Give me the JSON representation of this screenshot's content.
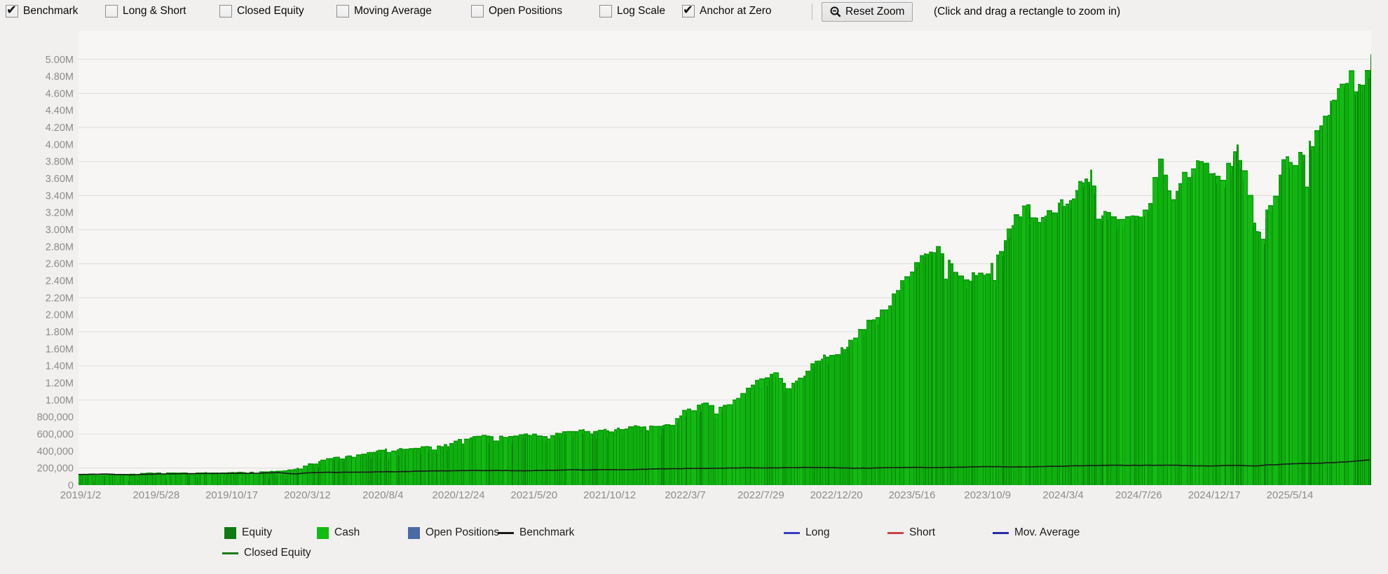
{
  "toolbar": {
    "checkboxes": [
      {
        "label": "Benchmark",
        "checked": true
      },
      {
        "label": "Long & Short",
        "checked": false
      },
      {
        "label": "Closed Equity",
        "checked": false
      },
      {
        "label": "Moving Average",
        "checked": false
      },
      {
        "label": "Open Positions",
        "checked": false
      },
      {
        "label": "Log Scale",
        "checked": false
      },
      {
        "label": "Anchor at Zero",
        "checked": true
      }
    ],
    "reset_zoom_label": "Reset Zoom",
    "hint": "(Click and drag a rectangle to zoom in)"
  },
  "chart_data": {
    "type": "area",
    "title": "",
    "xlabel": "",
    "ylabel": "",
    "ylim": [
      0,
      5200000
    ],
    "grid": "horizontal gridlines every 400,000 starting at 200,000",
    "legend_position": "bottom",
    "x_tick_labels": [
      "2019/1/2",
      "2019/5/28",
      "2019/10/17",
      "2020/3/12",
      "2020/8/4",
      "2020/12/24",
      "2021/5/20",
      "2021/10/12",
      "2022/3/7",
      "2022/7/29",
      "2022/12/20",
      "2023/5/16",
      "2023/10/9",
      "2024/3/4",
      "2024/7/26",
      "2024/12/17",
      "2025/5/14"
    ],
    "y_tick_labels": [
      "0",
      "200,000",
      "400,000",
      "600,000",
      "800,000",
      "1.00M",
      "1.20M",
      "1.40M",
      "1.60M",
      "1.80M",
      "2.00M",
      "2.20M",
      "2.40M",
      "2.60M",
      "2.80M",
      "3.00M",
      "3.20M",
      "3.40M",
      "3.60M",
      "3.80M",
      "4.00M",
      "4.20M",
      "4.40M",
      "4.60M",
      "4.80M",
      "5.00M"
    ],
    "y_tick_step": 200000,
    "series": [
      {
        "name": "Equity / Cash",
        "type": "area-bars",
        "color": "#12b412",
        "keypoints": [
          [
            0.0,
            128000
          ],
          [
            0.01,
            132000
          ],
          [
            0.02,
            136000
          ],
          [
            0.035,
            130000
          ],
          [
            0.05,
            142000
          ],
          [
            0.065,
            148000
          ],
          [
            0.08,
            146000
          ],
          [
            0.095,
            150000
          ],
          [
            0.11,
            148000
          ],
          [
            0.119,
            152000
          ],
          [
            0.13,
            155000
          ],
          [
            0.14,
            158000
          ],
          [
            0.15,
            165000
          ],
          [
            0.16,
            172000
          ],
          [
            0.17,
            200000
          ],
          [
            0.177,
            235000
          ],
          [
            0.185,
            290000
          ],
          [
            0.195,
            320000
          ],
          [
            0.205,
            335000
          ],
          [
            0.215,
            355000
          ],
          [
            0.225,
            385000
          ],
          [
            0.236,
            420000
          ],
          [
            0.248,
            430000
          ],
          [
            0.26,
            440000
          ],
          [
            0.272,
            455000
          ],
          [
            0.283,
            465000
          ],
          [
            0.294,
            540000
          ],
          [
            0.305,
            565000
          ],
          [
            0.315,
            585000
          ],
          [
            0.325,
            570000
          ],
          [
            0.335,
            580000
          ],
          [
            0.345,
            595000
          ],
          [
            0.353,
            600000
          ],
          [
            0.362,
            570000
          ],
          [
            0.372,
            615000
          ],
          [
            0.382,
            635000
          ],
          [
            0.392,
            645000
          ],
          [
            0.4,
            640000
          ],
          [
            0.411,
            655000
          ],
          [
            0.42,
            670000
          ],
          [
            0.43,
            690000
          ],
          [
            0.44,
            705000
          ],
          [
            0.45,
            690000
          ],
          [
            0.458,
            730000
          ],
          [
            0.465,
            820000
          ],
          [
            0.47,
            890000
          ],
          [
            0.478,
            940000
          ],
          [
            0.486,
            975000
          ],
          [
            0.493,
            880000
          ],
          [
            0.5,
            930000
          ],
          [
            0.508,
            1000000
          ],
          [
            0.515,
            1090000
          ],
          [
            0.521,
            1180000
          ],
          [
            0.528,
            1250000
          ],
          [
            0.535,
            1290000
          ],
          [
            0.542,
            1310000
          ],
          [
            0.549,
            1140000
          ],
          [
            0.556,
            1250000
          ],
          [
            0.563,
            1320000
          ],
          [
            0.57,
            1450000
          ],
          [
            0.578,
            1510000
          ],
          [
            0.586,
            1550000
          ],
          [
            0.594,
            1630000
          ],
          [
            0.602,
            1760000
          ],
          [
            0.61,
            1900000
          ],
          [
            0.618,
            2000000
          ],
          [
            0.626,
            2100000
          ],
          [
            0.635,
            2320000
          ],
          [
            0.645,
            2550000
          ],
          [
            0.652,
            2650000
          ],
          [
            0.66,
            2730000
          ],
          [
            0.668,
            2780000
          ],
          [
            0.674,
            2600000
          ],
          [
            0.681,
            2480000
          ],
          [
            0.688,
            2420000
          ],
          [
            0.695,
            2480000
          ],
          [
            0.703,
            2500000
          ],
          [
            0.71,
            2650000
          ],
          [
            0.717,
            2880000
          ],
          [
            0.724,
            3120000
          ],
          [
            0.731,
            3260000
          ],
          [
            0.738,
            3280000
          ],
          [
            0.744,
            3100000
          ],
          [
            0.75,
            3180000
          ],
          [
            0.757,
            3280000
          ],
          [
            0.764,
            3300000
          ],
          [
            0.77,
            3420000
          ],
          [
            0.777,
            3550000
          ],
          [
            0.784,
            3660000
          ],
          [
            0.79,
            3100000
          ],
          [
            0.797,
            3220000
          ],
          [
            0.804,
            3180000
          ],
          [
            0.812,
            3100000
          ],
          [
            0.82,
            3180000
          ],
          [
            0.826,
            3260000
          ],
          [
            0.83,
            3320000
          ],
          [
            0.836,
            3900000
          ],
          [
            0.841,
            3700000
          ],
          [
            0.846,
            3380000
          ],
          [
            0.852,
            3550000
          ],
          [
            0.86,
            3700000
          ],
          [
            0.866,
            3800000
          ],
          [
            0.872,
            3820000
          ],
          [
            0.877,
            3620000
          ],
          [
            0.883,
            3580000
          ],
          [
            0.889,
            3700000
          ],
          [
            0.895,
            3900000
          ],
          [
            0.898,
            4130000
          ],
          [
            0.902,
            3800000
          ],
          [
            0.906,
            3420000
          ],
          [
            0.91,
            3060000
          ],
          [
            0.914,
            3000000
          ],
          [
            0.919,
            3170000
          ],
          [
            0.923,
            3330000
          ],
          [
            0.928,
            3420000
          ],
          [
            0.932,
            4200000
          ],
          [
            0.934,
            3800000
          ],
          [
            0.937,
            3780000
          ],
          [
            0.942,
            3830000
          ],
          [
            0.948,
            3900000
          ],
          [
            0.953,
            4000000
          ],
          [
            0.958,
            4120000
          ],
          [
            0.963,
            4330000
          ],
          [
            0.968,
            4420000
          ],
          [
            0.972,
            4560000
          ],
          [
            0.977,
            4650000
          ],
          [
            0.983,
            4780000
          ],
          [
            0.99,
            4870000
          ],
          [
            0.993,
            4620000
          ],
          [
            0.996,
            4750000
          ],
          [
            0.999,
            5050000
          ],
          [
            1.0,
            5060000
          ]
        ]
      },
      {
        "name": "Benchmark",
        "type": "line",
        "color": "#1a1a1a",
        "keypoints": [
          [
            0.0,
            126000
          ],
          [
            0.02,
            130000
          ],
          [
            0.04,
            126000
          ],
          [
            0.06,
            136000
          ],
          [
            0.09,
            140000
          ],
          [
            0.119,
            142000
          ],
          [
            0.14,
            146000
          ],
          [
            0.155,
            150000
          ],
          [
            0.168,
            136000
          ],
          [
            0.177,
            150000
          ],
          [
            0.2,
            155000
          ],
          [
            0.236,
            160000
          ],
          [
            0.27,
            163000
          ],
          [
            0.294,
            167000
          ],
          [
            0.32,
            170000
          ],
          [
            0.353,
            173000
          ],
          [
            0.38,
            176000
          ],
          [
            0.411,
            180000
          ],
          [
            0.44,
            184000
          ],
          [
            0.47,
            190000
          ],
          [
            0.5,
            196000
          ],
          [
            0.52,
            200000
          ],
          [
            0.54,
            196000
          ],
          [
            0.56,
            202000
          ],
          [
            0.586,
            200000
          ],
          [
            0.62,
            206000
          ],
          [
            0.645,
            210000
          ],
          [
            0.67,
            212000
          ],
          [
            0.703,
            214000
          ],
          [
            0.73,
            218000
          ],
          [
            0.762,
            222000
          ],
          [
            0.79,
            226000
          ],
          [
            0.82,
            230000
          ],
          [
            0.85,
            234000
          ],
          [
            0.878,
            230000
          ],
          [
            0.89,
            238000
          ],
          [
            0.9,
            232000
          ],
          [
            0.91,
            226000
          ],
          [
            0.92,
            238000
          ],
          [
            0.937,
            246000
          ],
          [
            0.95,
            252000
          ],
          [
            0.965,
            262000
          ],
          [
            0.98,
            272000
          ],
          [
            0.99,
            284000
          ],
          [
            1.0,
            296000
          ]
        ]
      }
    ]
  },
  "legend": {
    "row1": [
      {
        "label": "Equity",
        "swatch": "square",
        "color": "#117a11"
      },
      {
        "label": "Cash",
        "swatch": "square",
        "color": "#12bb12"
      },
      {
        "label": "Open Positions",
        "swatch": "square",
        "color": "#4a6aa5"
      },
      {
        "label": "Benchmark",
        "swatch": "line",
        "color": "#1a1a1a"
      },
      {
        "label": "Long",
        "swatch": "line",
        "color": "#3b3bc8"
      },
      {
        "label": "Short",
        "swatch": "line",
        "color": "#c84444"
      },
      {
        "label": "Mov. Average",
        "swatch": "line",
        "color": "#2a2aa8"
      }
    ],
    "row2": [
      {
        "label": "Closed Equity",
        "swatch": "line",
        "color": "#1a7a1a"
      }
    ]
  },
  "colors": {
    "page_bg": "#f1f0ef",
    "plot_bg": "#f7f6f5",
    "grid_line": "#dddddb",
    "axis_text": "#8c8c8c",
    "bar_shades": [
      "#0fae0f",
      "#12b412",
      "#14ba14",
      "#0eb00e"
    ],
    "bar_edge": "#0a7a0a",
    "bar_top_edge": "#0a9408",
    "streak_dark": "#086408",
    "benchmark_line": "#1a1a1a",
    "check_mark": "#111111"
  }
}
